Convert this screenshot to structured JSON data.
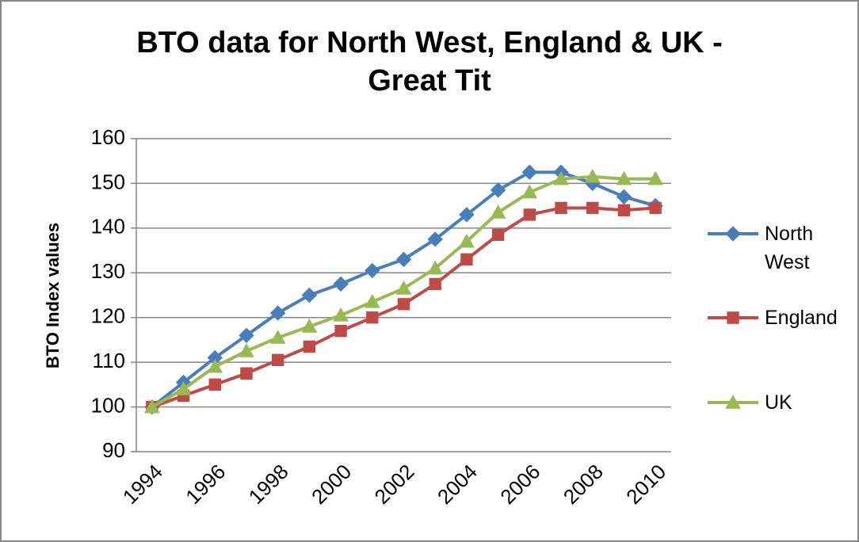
{
  "chart_data": {
    "type": "line",
    "title": "BTO data for North West, England & UK - Great Tit",
    "y_label": "BTO Index values",
    "categories": [
      "1994",
      null,
      "1996",
      null,
      "1998",
      null,
      "2000",
      null,
      "2002",
      null,
      "2004",
      null,
      "2006",
      null,
      "2008",
      null,
      "2010"
    ],
    "series": [
      {
        "name": "North West",
        "color": "#4a7ebb",
        "marker": "diamond",
        "values": [
          100,
          105.5,
          111,
          116,
          121,
          125,
          127.5,
          130.5,
          133,
          137.5,
          143,
          148.5,
          152.5,
          152.5,
          150,
          147,
          145
        ]
      },
      {
        "name": "England",
        "color": "#be4b48",
        "marker": "square",
        "values": [
          100,
          102.5,
          105,
          107.5,
          110.5,
          113.5,
          117,
          120,
          123,
          127.5,
          133,
          138.5,
          143,
          144.5,
          144.5,
          144,
          144.5
        ]
      },
      {
        "name": "UK",
        "color": "#98b954",
        "marker": "triangle",
        "values": [
          100,
          104,
          109,
          112.5,
          115.5,
          118,
          120.5,
          123.5,
          126.5,
          131,
          137,
          143.5,
          148,
          151,
          151.5,
          151,
          151
        ]
      }
    ],
    "ylim": [
      90,
      160
    ],
    "yticks": [
      90,
      100,
      110,
      120,
      130,
      140,
      150,
      160
    ],
    "grid": true,
    "legend": "right"
  }
}
